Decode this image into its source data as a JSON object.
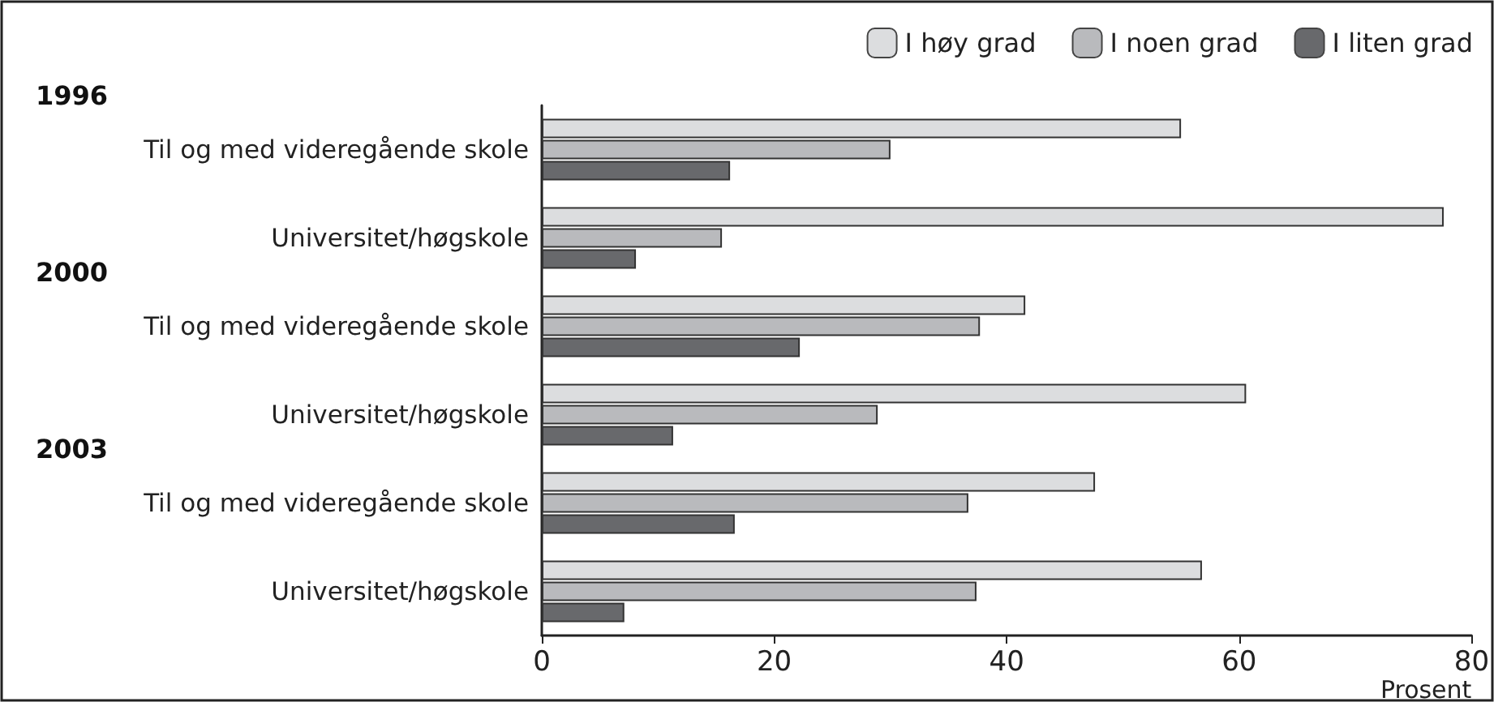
{
  "chart_data": {
    "type": "bar",
    "orientation": "horizontal",
    "categories": [
      "Til og med videregående skole",
      "Universitet/høgskole",
      "Til og med videregående skole",
      "Universitet/høgskole",
      "Til og med videregående skole",
      "Universitet/høgskole"
    ],
    "annotations": [
      "1996",
      "2000",
      "2003"
    ],
    "xlabel": "Prosent",
    "series": [
      {
        "name": "I høy grad",
        "color": "#dcdddf",
        "values": [
          55.0,
          77.6,
          41.6,
          60.6,
          47.6,
          56.8
        ]
      },
      {
        "name": "I noen grad",
        "color": "#b9babd",
        "values": [
          30.0,
          15.5,
          37.7,
          28.9,
          36.7,
          37.4
        ]
      },
      {
        "name": "I liten grad",
        "color": "#68696c",
        "values": [
          16.2,
          8.1,
          22.2,
          11.3,
          16.6,
          7.1
        ]
      }
    ],
    "xlim": [
      0,
      80
    ],
    "xticks": [
      0,
      20,
      40,
      60,
      80
    ],
    "grid": false,
    "legend": "top right"
  }
}
